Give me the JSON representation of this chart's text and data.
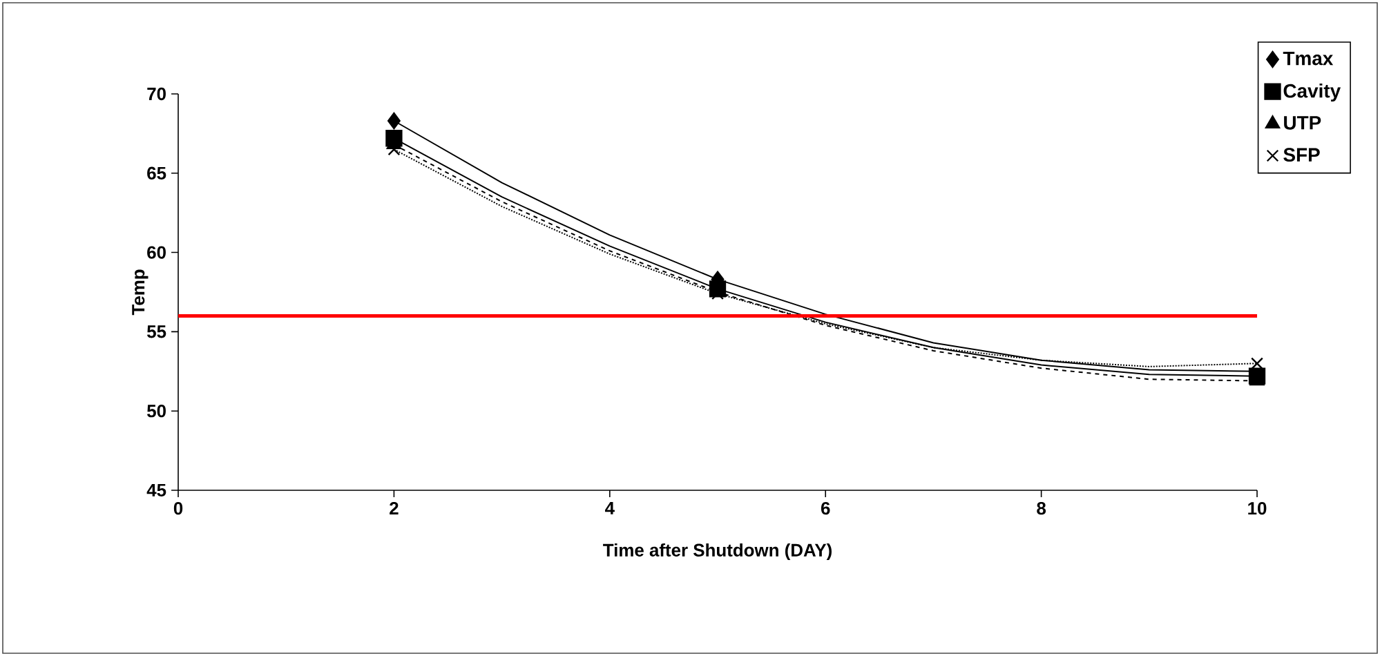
{
  "chart_data": {
    "type": "scatter",
    "xlabel": "Time after Shutdown (DAY)",
    "ylabel": "Temp",
    "xlim": [
      0,
      10
    ],
    "ylim": [
      45,
      70
    ],
    "xticks": [
      0,
      2,
      4,
      6,
      8,
      10
    ],
    "yticks": [
      45,
      50,
      55,
      60,
      65,
      70
    ],
    "grid": false,
    "legend": "top right",
    "series": [
      {
        "name": "Tmax",
        "marker": "diamond",
        "color": "#000000",
        "x": [
          2,
          5
        ],
        "values": [
          68.3,
          58.3
        ]
      },
      {
        "name": "Cavity",
        "marker": "square",
        "color": "#000000",
        "x": [
          2,
          5,
          10
        ],
        "values": [
          67.2,
          57.7,
          52.2
        ]
      },
      {
        "name": "UTP",
        "marker": "triangle",
        "color": "#000000",
        "x": [
          2,
          10
        ],
        "values": [
          66.8,
          51.9
        ]
      },
      {
        "name": "SFP",
        "marker": "cross",
        "color": "#000000",
        "x": [
          2,
          5,
          10
        ],
        "values": [
          66.5,
          57.4,
          53.0
        ]
      },
      {
        "type": "line",
        "line_style": "solid",
        "color": "#000000",
        "x": [
          2,
          3,
          4,
          5,
          6,
          7,
          8,
          9,
          10
        ],
        "values": [
          68.3,
          64.4,
          61.1,
          58.3,
          56.1,
          54.3,
          53.2,
          52.6,
          52.5
        ]
      },
      {
        "type": "line",
        "line_style": "solid",
        "color": "#000000",
        "x": [
          2,
          3,
          4,
          5,
          6,
          7,
          8,
          9,
          10
        ],
        "values": [
          67.2,
          63.5,
          60.4,
          57.7,
          55.6,
          54.0,
          52.9,
          52.3,
          52.2
        ]
      },
      {
        "type": "line",
        "line_style": "dashed",
        "color": "#000000",
        "x": [
          2,
          3,
          4,
          5,
          6,
          7,
          8,
          9,
          10
        ],
        "values": [
          66.8,
          63.2,
          60.1,
          57.5,
          55.4,
          53.8,
          52.7,
          52.0,
          51.9
        ]
      },
      {
        "type": "line",
        "line_style": "dotted",
        "color": "#000000",
        "x": [
          2,
          3,
          4,
          5,
          6,
          7,
          8,
          9,
          10
        ],
        "values": [
          66.5,
          62.9,
          59.9,
          57.4,
          55.5,
          54.0,
          53.2,
          52.8,
          53.0
        ]
      }
    ],
    "ref_lines": [
      {
        "axis": "y",
        "value": 56,
        "color": "#ff0000"
      }
    ]
  }
}
